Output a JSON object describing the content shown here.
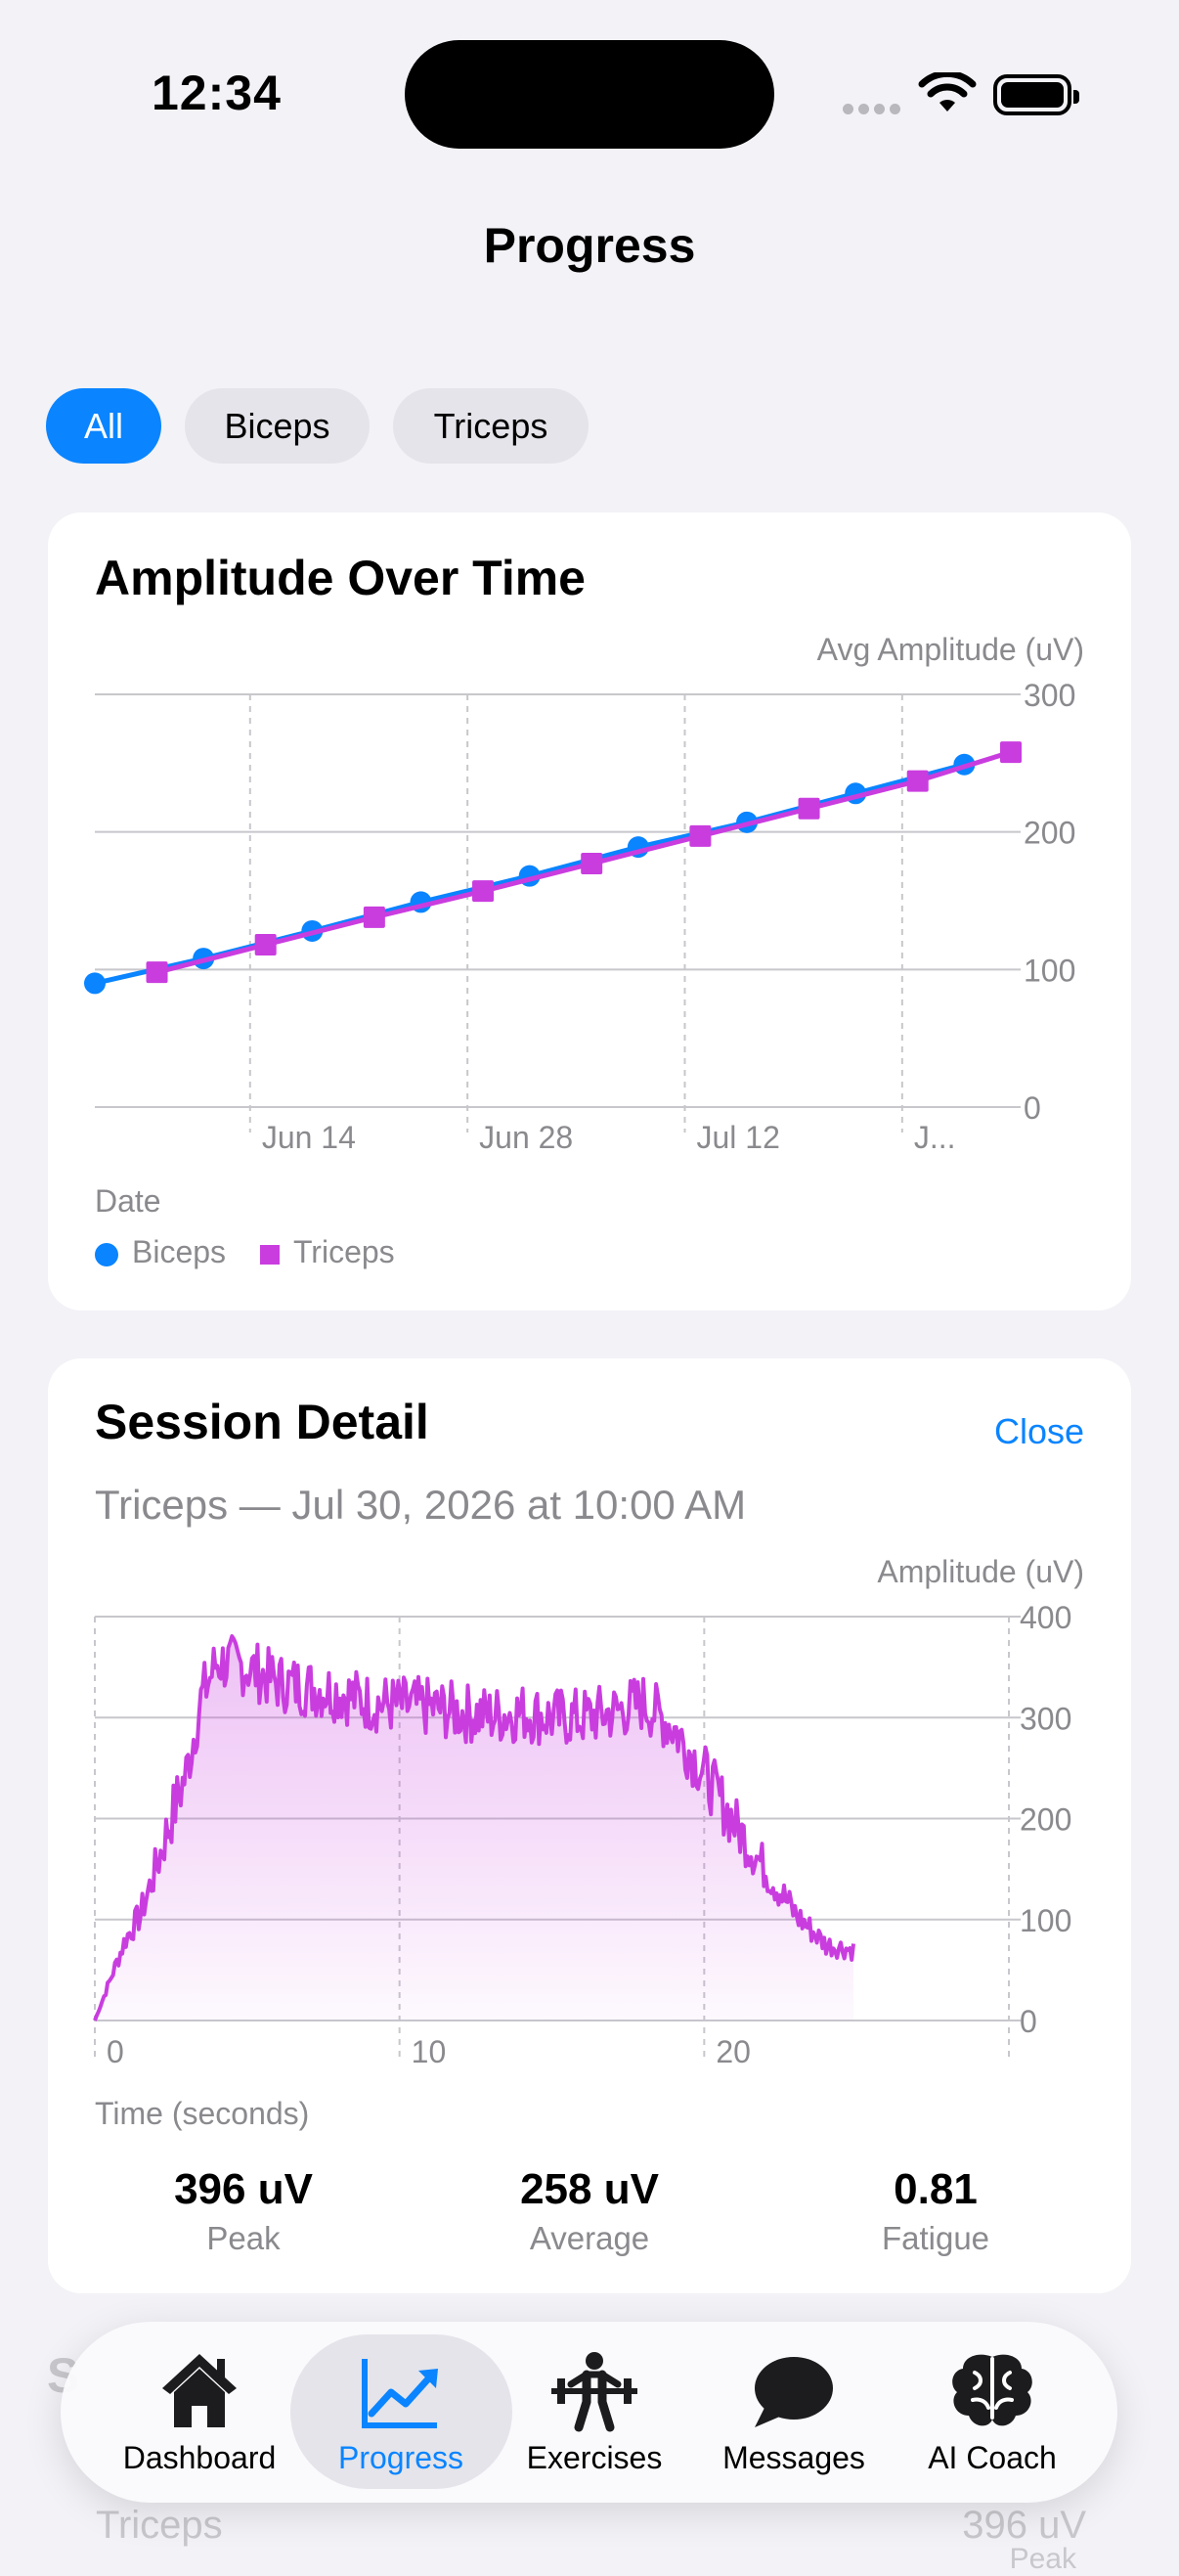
{
  "status_bar": {
    "time": "12:34"
  },
  "header": {
    "title": "Progress"
  },
  "filters": [
    {
      "label": "All",
      "selected": true
    },
    {
      "label": "Biceps",
      "selected": false
    },
    {
      "label": "Triceps",
      "selected": false
    }
  ],
  "amplitude_card": {
    "title": "Amplitude Over Time",
    "y_axis_label": "Avg Amplitude (uV)",
    "x_axis_label": "Date",
    "y_ticks": [
      "300",
      "200",
      "100",
      "0"
    ],
    "x_ticks": [
      "Jun 14",
      "Jun 28",
      "Jul 12",
      "J..."
    ],
    "legend": [
      {
        "name": "Biceps",
        "color": "#0a84ff",
        "shape": "circle"
      },
      {
        "name": "Triceps",
        "color": "#c93ddf",
        "shape": "square"
      }
    ]
  },
  "session_card": {
    "title": "Session Detail",
    "close_label": "Close",
    "subtitle": "Triceps — Jul 30, 2026 at 10:00 AM",
    "y_axis_label": "Amplitude (uV)",
    "x_axis_label": "Time (seconds)",
    "y_ticks": [
      "400",
      "300",
      "200",
      "100",
      "0"
    ],
    "x_ticks": [
      "0",
      "10",
      "20"
    ],
    "stats": [
      {
        "value": "396 uV",
        "label": "Peak"
      },
      {
        "value": "258 uV",
        "label": "Average"
      },
      {
        "value": "0.81",
        "label": "Fatigue"
      }
    ]
  },
  "chart_data": [
    {
      "type": "line",
      "title": "Amplitude Over Time",
      "xlabel": "Date",
      "ylabel": "Avg Amplitude (uV)",
      "ylim": [
        0,
        300
      ],
      "x_tick_labels": [
        "Jun 14",
        "Jun 28",
        "Jul 12",
        "J..."
      ],
      "grid": true,
      "legend_position": "bottom-left",
      "series": [
        {
          "name": "Biceps",
          "color": "#0a84ff",
          "marker": "circle",
          "x": [
            "2026-06-04",
            "2026-06-11",
            "2026-06-18",
            "2026-06-25",
            "2026-07-02",
            "2026-07-09",
            "2026-07-16",
            "2026-07-23",
            "2026-07-30"
          ],
          "y": [
            90,
            108,
            128,
            149,
            168,
            189,
            207,
            228,
            249
          ]
        },
        {
          "name": "Triceps",
          "color": "#c93ddf",
          "marker": "square",
          "x": [
            "2026-06-08",
            "2026-06-15",
            "2026-06-22",
            "2026-06-29",
            "2026-07-06",
            "2026-07-13",
            "2026-07-20",
            "2026-07-27",
            "2026-08-02"
          ],
          "y": [
            98,
            118,
            138,
            157,
            177,
            197,
            217,
            237,
            258
          ]
        }
      ]
    },
    {
      "type": "area",
      "title": "Session Detail",
      "xlabel": "Time (seconds)",
      "ylabel": "Amplitude (uV)",
      "ylim": [
        0,
        400
      ],
      "xlim": [
        0,
        30
      ],
      "grid": true,
      "series": [
        {
          "name": "Triceps",
          "color": "#c93ddf",
          "envelope": [
            [
              0,
              0
            ],
            [
              0.5,
              40
            ],
            [
              1,
              80
            ],
            [
              1.5,
              105
            ],
            [
              2,
              150
            ],
            [
              2.5,
              200
            ],
            [
              3,
              245
            ],
            [
              3.5,
              320
            ],
            [
              4,
              355
            ],
            [
              5,
              350
            ],
            [
              6,
              335
            ],
            [
              7,
              330
            ],
            [
              8,
              325
            ],
            [
              9,
              315
            ],
            [
              10,
              312
            ],
            [
              11,
              310
            ],
            [
              12,
              305
            ],
            [
              13,
              302
            ],
            [
              14,
              305
            ],
            [
              15,
              300
            ],
            [
              16,
              300
            ],
            [
              17,
              305
            ],
            [
              18,
              315
            ],
            [
              19,
              290
            ],
            [
              20,
              245
            ],
            [
              21,
              195
            ],
            [
              22,
              150
            ],
            [
              23,
              105
            ],
            [
              24,
              75
            ],
            [
              24.9,
              70
            ]
          ],
          "noise_amplitude": 30
        }
      ]
    }
  ]
}
